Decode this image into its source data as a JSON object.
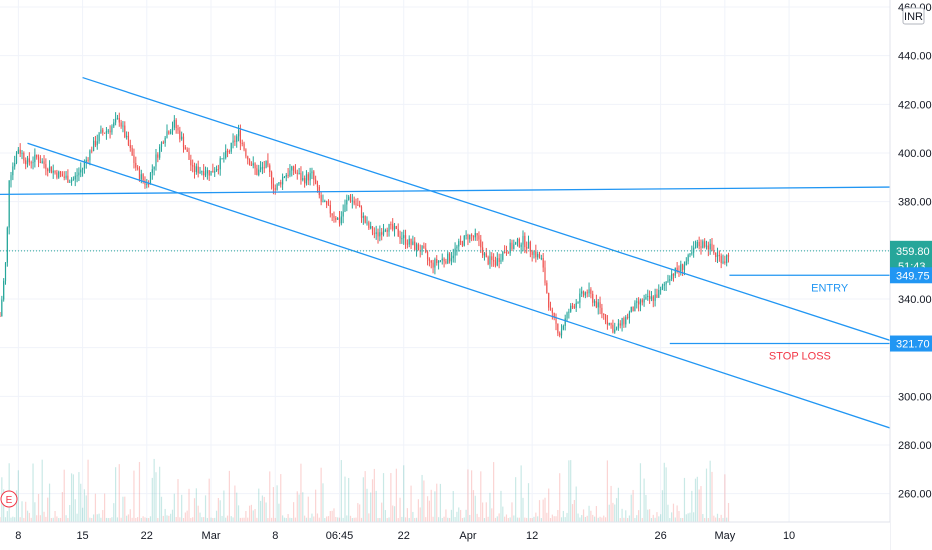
{
  "chart_data": {
    "type": "candlestick",
    "currency": "INR",
    "ylim": [
      250,
      460
    ],
    "y_ticks": [
      260,
      280,
      300,
      320,
      340,
      360,
      380,
      400,
      420,
      440,
      460
    ],
    "y_tick_labels": [
      "260.00",
      "280.00",
      "300.00",
      "",
      "340.00",
      "",
      "380.00",
      "400.00",
      "420.00",
      "440.00",
      "460.00"
    ],
    "x_ticks": [
      "8",
      "15",
      "22",
      "Mar",
      "8",
      "06:45",
      "22",
      "Apr",
      "12",
      "26",
      "May",
      "10"
    ],
    "x_range_days": [
      -2,
      95
    ],
    "x_tick_days": [
      0,
      7,
      14,
      21,
      28,
      35,
      42,
      49,
      56,
      70,
      77,
      84
    ],
    "price_points": [
      [
        -2,
        333
      ],
      [
        -1.6,
        347
      ],
      [
        -1.3,
        358
      ],
      [
        -1,
        390
      ],
      [
        0,
        402
      ],
      [
        1,
        396
      ],
      [
        2,
        398
      ],
      [
        3,
        395
      ],
      [
        4,
        392
      ],
      [
        5,
        390
      ],
      [
        6,
        389
      ],
      [
        7,
        394
      ],
      [
        8,
        402
      ],
      [
        9,
        408
      ],
      [
        10,
        410
      ],
      [
        11,
        414
      ],
      [
        12,
        403
      ],
      [
        13,
        392
      ],
      [
        14,
        387
      ],
      [
        15,
        398
      ],
      [
        16,
        408
      ],
      [
        17,
        412
      ],
      [
        18,
        404
      ],
      [
        19,
        393
      ],
      [
        20,
        393
      ],
      [
        21,
        392
      ],
      [
        22,
        396
      ],
      [
        23,
        401
      ],
      [
        24,
        408
      ],
      [
        25,
        398
      ],
      [
        26,
        392
      ],
      [
        27,
        395
      ],
      [
        28,
        385
      ],
      [
        29,
        391
      ],
      [
        30,
        393
      ],
      [
        31,
        389
      ],
      [
        32,
        391
      ],
      [
        33,
        380
      ],
      [
        34,
        376
      ],
      [
        35,
        372
      ],
      [
        36,
        382
      ],
      [
        37,
        378
      ],
      [
        38,
        370
      ],
      [
        39,
        366
      ],
      [
        40,
        370
      ],
      [
        41,
        368
      ],
      [
        42,
        365
      ],
      [
        43,
        362
      ],
      [
        44,
        360
      ],
      [
        45,
        354
      ],
      [
        46,
        356
      ],
      [
        47,
        357
      ],
      [
        48,
        362
      ],
      [
        49,
        366
      ],
      [
        50,
        365
      ],
      [
        51,
        356
      ],
      [
        52,
        355
      ],
      [
        53,
        360
      ],
      [
        54,
        362
      ],
      [
        55,
        364
      ],
      [
        56,
        360
      ],
      [
        57,
        356
      ],
      [
        58,
        334
      ],
      [
        59,
        326
      ],
      [
        60,
        335
      ],
      [
        61,
        340
      ],
      [
        62,
        343
      ],
      [
        63,
        338
      ],
      [
        64,
        332
      ],
      [
        65,
        327
      ],
      [
        66,
        331
      ],
      [
        67,
        336
      ],
      [
        68,
        339
      ],
      [
        69,
        340
      ],
      [
        70,
        343
      ],
      [
        71,
        350
      ],
      [
        72,
        352
      ],
      [
        73,
        356
      ],
      [
        74,
        362
      ],
      [
        75,
        363
      ],
      [
        76,
        358
      ],
      [
        77,
        356
      ],
      [
        77.5,
        359.8
      ]
    ],
    "volume_level": [
      0.3,
      0.6
    ],
    "trendlines": [
      {
        "color": "#2196f3",
        "from": [
          -2,
          383
        ],
        "to": [
          95,
          386
        ]
      },
      {
        "color": "#2196f3",
        "from": [
          7,
          431
        ],
        "to": [
          95,
          323
        ]
      },
      {
        "color": "#2196f3",
        "from": [
          1,
          404
        ],
        "to": [
          95,
          287
        ]
      }
    ],
    "levels": [
      {
        "label": "ENTRY",
        "price": 349.75,
        "tag": "349.75",
        "color": "#2196f3",
        "text_color": "#2196f3",
        "from_day": 77.5
      },
      {
        "label": "STOP LOSS",
        "price": 321.7,
        "tag": "321.70",
        "color": "#2196f3",
        "text_color": "#f23645",
        "from_day": 71
      }
    ],
    "last_price": {
      "value": 359.8,
      "label": "359.80",
      "countdown": "51:43",
      "color": "#26a69a"
    },
    "candle_colors": {
      "up": "#26a69a",
      "down": "#ef5350"
    },
    "grid": true
  }
}
